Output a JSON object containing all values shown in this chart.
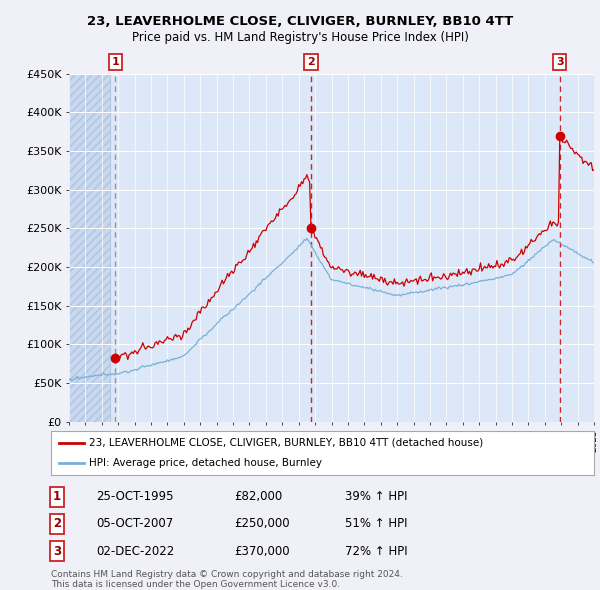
{
  "title": "23, LEAVERHOLME CLOSE, CLIVIGER, BURNLEY, BB10 4TT",
  "subtitle": "Price paid vs. HM Land Registry's House Price Index (HPI)",
  "background_color": "#f0f0f8",
  "plot_bg_color": "#dce8f8",
  "hatch_bg_color": "#c8d8ee",
  "y_ticks": [
    0,
    50000,
    100000,
    150000,
    200000,
    250000,
    300000,
    350000,
    400000,
    450000
  ],
  "y_tick_labels": [
    "£0",
    "£50K",
    "£100K",
    "£150K",
    "£200K",
    "£250K",
    "£300K",
    "£350K",
    "£400K",
    "£450K"
  ],
  "x_start_year": 1993,
  "x_end_year": 2025,
  "sale_years_float": [
    1995.8137,
    2007.7589,
    2022.9178
  ],
  "sale_prices": [
    82000,
    250000,
    370000
  ],
  "sale_labels": [
    "1",
    "2",
    "3"
  ],
  "sale_pct": [
    "39% ↑ HPI",
    "51% ↑ HPI",
    "72% ↑ HPI"
  ],
  "sale_date_labels": [
    "25-OCT-1995",
    "05-OCT-2007",
    "02-DEC-2022"
  ],
  "sale_price_labels": [
    "£82,000",
    "£250,000",
    "£370,000"
  ],
  "line_color_red": "#cc0000",
  "line_color_blue": "#7ab0d8",
  "sale_line_colors": [
    "#888888",
    "#cc0000",
    "#cc0000"
  ],
  "legend_label_red": "23, LEAVERHOLME CLOSE, CLIVIGER, BURNLEY, BB10 4TT (detached house)",
  "legend_label_blue": "HPI: Average price, detached house, Burnley",
  "footer_line1": "Contains HM Land Registry data © Crown copyright and database right 2024.",
  "footer_line2": "This data is licensed under the Open Government Licence v3.0."
}
